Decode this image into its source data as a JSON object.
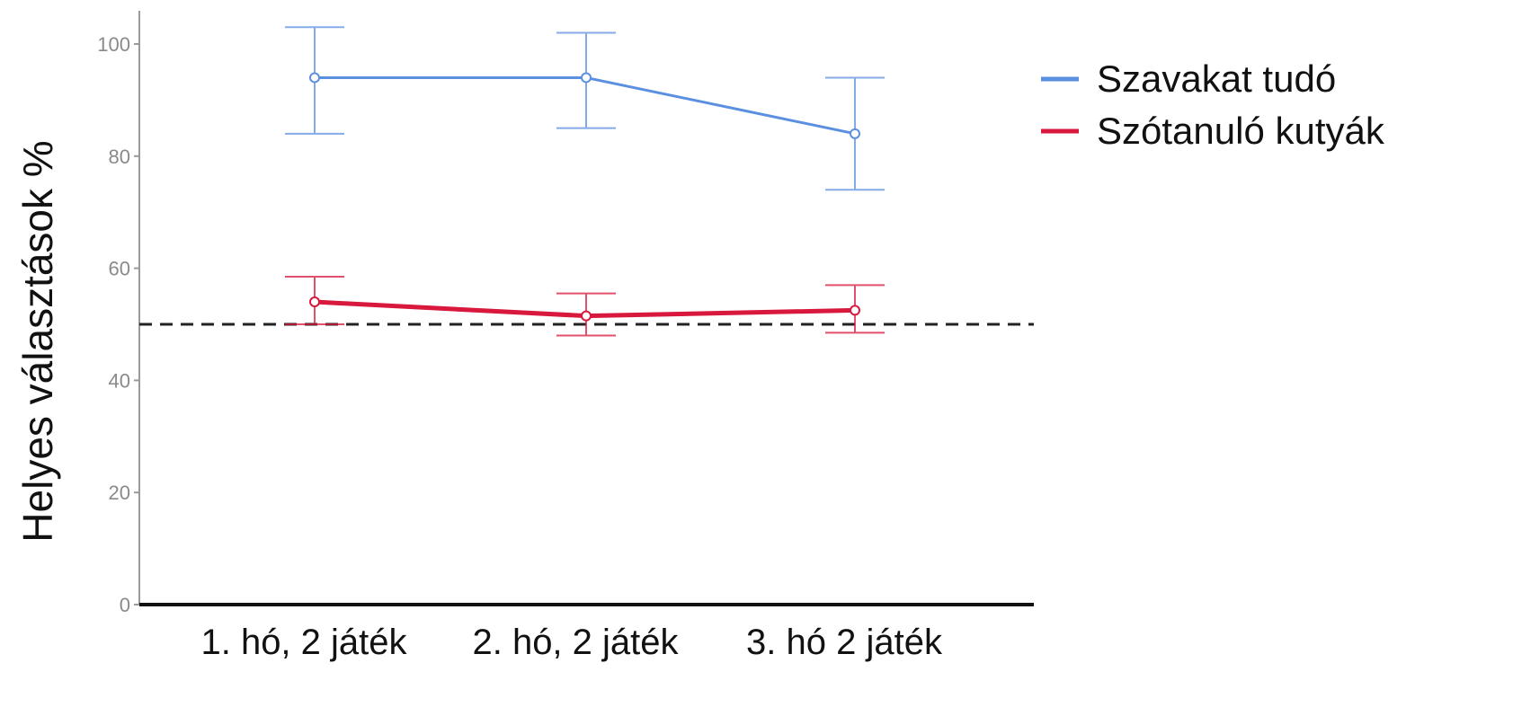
{
  "chart_data": {
    "type": "line",
    "categories": [
      "1. hó, 2 játék",
      "2. hó, 2 játék",
      "3. hó 2 játék"
    ],
    "ylabel": "Helyes választások %",
    "xlabel": "",
    "ylim": [
      0,
      105
    ],
    "yticks": [
      0,
      20,
      40,
      60,
      80,
      100
    ],
    "grid": false,
    "legend_position": "top-right",
    "reference_line": {
      "y": 50,
      "style": "dashed",
      "color": "#222222"
    },
    "series": [
      {
        "name": "Szavakat tudó",
        "color": "#5b8fe0",
        "values": [
          94,
          94,
          84
        ],
        "error_low": [
          84,
          85,
          74
        ],
        "error_high": [
          103,
          102,
          94
        ]
      },
      {
        "name": "Szótanuló kutyák",
        "color": "#d8183c",
        "values": [
          54,
          51.5,
          52.5
        ],
        "error_low": [
          50,
          48,
          48.5
        ],
        "error_high": [
          58.5,
          55.5,
          57
        ]
      }
    ]
  }
}
